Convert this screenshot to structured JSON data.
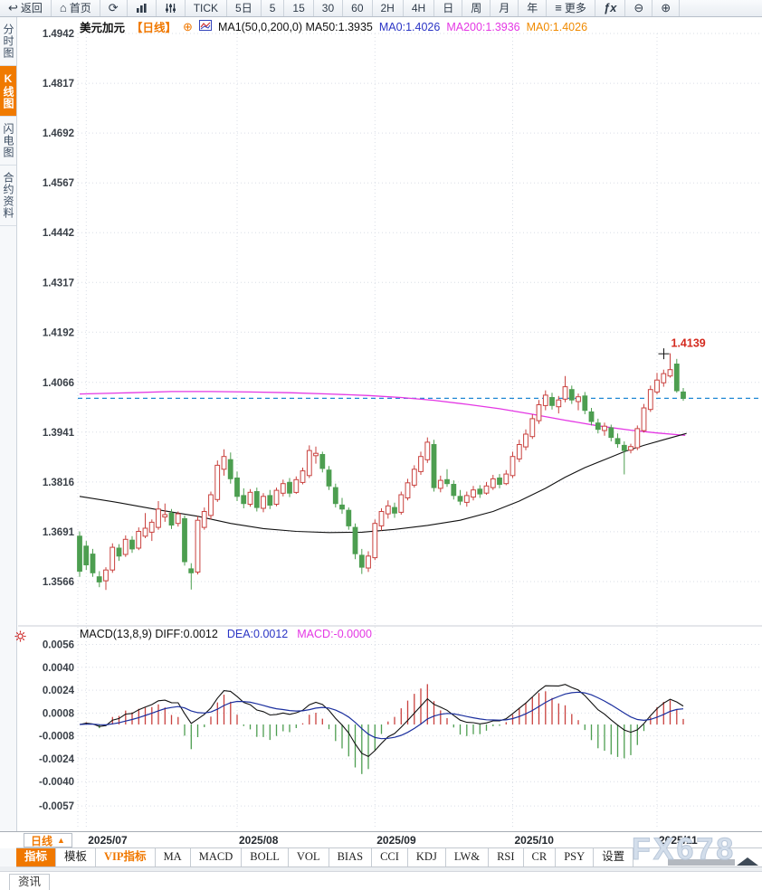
{
  "app": {
    "watermark": "FX678"
  },
  "toolbar": {
    "items": [
      {
        "name": "back",
        "icon": "back",
        "label": "返回"
      },
      {
        "name": "home",
        "icon": "home",
        "label": "首页"
      },
      {
        "name": "refresh",
        "icon": "refresh",
        "label": ""
      },
      {
        "name": "chart-type",
        "icon": "chart",
        "label": ""
      },
      {
        "name": "indicator-settings",
        "icon": "sliders",
        "label": ""
      },
      {
        "name": "tick",
        "label": "TICK"
      },
      {
        "name": "5day",
        "label": "5日"
      },
      {
        "name": "m5",
        "label": "5"
      },
      {
        "name": "m15",
        "label": "15"
      },
      {
        "name": "m30",
        "label": "30"
      },
      {
        "name": "m60",
        "label": "60"
      },
      {
        "name": "h2",
        "label": "2H"
      },
      {
        "name": "h4",
        "label": "4H"
      },
      {
        "name": "daily",
        "label": "日"
      },
      {
        "name": "weekly",
        "label": "周"
      },
      {
        "name": "monthly",
        "label": "月"
      },
      {
        "name": "yearly",
        "label": "年"
      },
      {
        "name": "more",
        "icon": "menu",
        "label": "更多"
      },
      {
        "name": "fx-function",
        "icon": "fx",
        "label": ""
      },
      {
        "name": "zoom-out",
        "icon": "zoomout",
        "label": ""
      },
      {
        "name": "zoom-in",
        "icon": "zoomin",
        "label": ""
      }
    ]
  },
  "sidebar": {
    "items": [
      {
        "name": "time-share-chart",
        "label": "分时图",
        "selected": false
      },
      {
        "name": "kline-chart",
        "label": "K线图",
        "selected": true
      },
      {
        "name": "lightning-chart",
        "label": "闪电图",
        "selected": false
      },
      {
        "name": "contract-info",
        "label": "合约资料",
        "selected": false
      }
    ]
  },
  "chart_header": {
    "symbol": "美元加元",
    "period": "【日线】",
    "add_icon": "⊕",
    "ma_line": "MA1(50,0,200,0) MA50:1.3935",
    "ma0_blue": "MA0:1.4026",
    "ma200": "MA200:1.3936",
    "ma0_orange": "MA0:1.4026"
  },
  "macd_header": {
    "line": "MACD(13,8,9) DIFF:0.0012",
    "dea": "DEA:0.0012",
    "macd": "MACD:-0.0000"
  },
  "date_axis": {
    "period_label": "日线",
    "period_arrow": "▲"
  },
  "tabs": [
    {
      "label": "指标",
      "state": "selected"
    },
    {
      "label": "模板",
      "state": "normal"
    },
    {
      "label": "VIP指标",
      "state": "vip"
    },
    {
      "label": "MA",
      "state": "normal"
    },
    {
      "label": "MACD",
      "state": "normal"
    },
    {
      "label": "BOLL",
      "state": "normal"
    },
    {
      "label": "VOL",
      "state": "normal"
    },
    {
      "label": "BIAS",
      "state": "normal"
    },
    {
      "label": "CCI",
      "state": "normal"
    },
    {
      "label": "KDJ",
      "state": "normal"
    },
    {
      "label": "LW&",
      "state": "normal"
    },
    {
      "label": "RSI",
      "state": "normal"
    },
    {
      "label": "CR",
      "state": "normal"
    },
    {
      "label": "PSY",
      "state": "normal"
    },
    {
      "label": "设置",
      "state": "normal"
    }
  ],
  "news_bar": {
    "label": "资讯"
  },
  "price_marker": {
    "label": "1.4139"
  },
  "chart_data": {
    "type": "candlestick",
    "title": "美元加元 日线 (USD/CAD Daily) with MA50/MA200 and MACD(13,8,9)",
    "price_ticks": [
      "1.4942",
      "1.4817",
      "1.4692",
      "1.4567",
      "1.4442",
      "1.4317",
      "1.4192",
      "1.4066",
      "1.3941",
      "1.3816",
      "1.3691",
      "1.3566"
    ],
    "macd_ticks": [
      "0.0056",
      "0.0040",
      "0.0024",
      "0.0008",
      "-0.0008",
      "-0.0024",
      "-0.0040",
      "-0.0057"
    ],
    "months": [
      {
        "label": "2025/07",
        "index": 1
      },
      {
        "label": "2025/08",
        "index": 24
      },
      {
        "label": "2025/09",
        "index": 45
      },
      {
        "label": "2025/10",
        "index": 66
      },
      {
        "label": "2025/11",
        "index": 88
      }
    ],
    "dashed_close_line": 1.4026,
    "marker_index": 90,
    "candles": [
      [
        1.368,
        1.3692,
        1.3578,
        1.3592
      ],
      [
        1.3655,
        1.3668,
        1.3595,
        1.3608
      ],
      [
        1.3635,
        1.3648,
        1.3578,
        1.3588
      ],
      [
        1.3578,
        1.3592,
        1.3552,
        1.3565
      ],
      [
        1.3568,
        1.3602,
        1.3545,
        1.3595
      ],
      [
        1.3595,
        1.3662,
        1.3588,
        1.3652
      ],
      [
        1.365,
        1.366,
        1.3618,
        1.363
      ],
      [
        1.3634,
        1.3682,
        1.3628,
        1.3672
      ],
      [
        1.367,
        1.368,
        1.3638,
        1.3648
      ],
      [
        1.365,
        1.3702,
        1.3645,
        1.3692
      ],
      [
        1.368,
        1.3738,
        1.3675,
        1.37
      ],
      [
        1.369,
        1.3722,
        1.3668,
        1.3715
      ],
      [
        1.3702,
        1.3768,
        1.3696,
        1.3748
      ],
      [
        1.3728,
        1.3762,
        1.3716,
        1.3734
      ],
      [
        1.3738,
        1.3748,
        1.3698,
        1.3708
      ],
      [
        1.3712,
        1.3742,
        1.3704,
        1.3736
      ],
      [
        1.3724,
        1.3732,
        1.3606,
        1.3616
      ],
      [
        1.3598,
        1.3612,
        1.3546,
        1.3588
      ],
      [
        1.359,
        1.373,
        1.3584,
        1.372
      ],
      [
        1.3702,
        1.3752,
        1.3696,
        1.3742
      ],
      [
        1.3732,
        1.3792,
        1.3722,
        1.3784
      ],
      [
        1.3772,
        1.387,
        1.3766,
        1.3858
      ],
      [
        1.3848,
        1.3898,
        1.3832,
        1.388
      ],
      [
        1.3872,
        1.389,
        1.3812,
        1.3824
      ],
      [
        1.3826,
        1.3842,
        1.3768,
        1.378
      ],
      [
        1.3782,
        1.38,
        1.375,
        1.3762
      ],
      [
        1.376,
        1.3798,
        1.3754,
        1.379
      ],
      [
        1.3792,
        1.3802,
        1.3742,
        1.3752
      ],
      [
        1.375,
        1.3788,
        1.374,
        1.378
      ],
      [
        1.3782,
        1.3796,
        1.3748,
        1.3758
      ],
      [
        1.376,
        1.3802,
        1.3755,
        1.3795
      ],
      [
        1.3788,
        1.3822,
        1.378,
        1.3812
      ],
      [
        1.3815,
        1.3826,
        1.3778,
        1.3788
      ],
      [
        1.379,
        1.383,
        1.3786,
        1.3822
      ],
      [
        1.3815,
        1.3852,
        1.381,
        1.3844
      ],
      [
        1.3832,
        1.3908,
        1.3826,
        1.3895
      ],
      [
        1.3882,
        1.3905,
        1.3862,
        1.3888
      ],
      [
        1.3885,
        1.3892,
        1.384,
        1.385
      ],
      [
        1.3846,
        1.3856,
        1.3796,
        1.3806
      ],
      [
        1.3802,
        1.3812,
        1.3752,
        1.3762
      ],
      [
        1.3758,
        1.3776,
        1.3736,
        1.3748
      ],
      [
        1.3745,
        1.3752,
        1.3696,
        1.3706
      ],
      [
        1.3702,
        1.3712,
        1.3622,
        1.3636
      ],
      [
        1.3632,
        1.3648,
        1.3585,
        1.3602
      ],
      [
        1.36,
        1.3642,
        1.359,
        1.363
      ],
      [
        1.3626,
        1.3722,
        1.362,
        1.3712
      ],
      [
        1.3706,
        1.375,
        1.3694,
        1.3742
      ],
      [
        1.3736,
        1.377,
        1.3724,
        1.3756
      ],
      [
        1.3752,
        1.3764,
        1.3726,
        1.3738
      ],
      [
        1.374,
        1.3792,
        1.3734,
        1.3784
      ],
      [
        1.3776,
        1.3824,
        1.377,
        1.3814
      ],
      [
        1.3808,
        1.3858,
        1.3802,
        1.3848
      ],
      [
        1.3842,
        1.3892,
        1.3834,
        1.388
      ],
      [
        1.3872,
        1.3928,
        1.3864,
        1.3916
      ],
      [
        1.391,
        1.3922,
        1.3792,
        1.3802
      ],
      [
        1.38,
        1.3832,
        1.379,
        1.382
      ],
      [
        1.3822,
        1.3848,
        1.3804,
        1.3812
      ],
      [
        1.381,
        1.382,
        1.3772,
        1.3782
      ],
      [
        1.378,
        1.3796,
        1.3758,
        1.3768
      ],
      [
        1.3765,
        1.3792,
        1.3754,
        1.3782
      ],
      [
        1.3778,
        1.3806,
        1.377,
        1.3796
      ],
      [
        1.3798,
        1.3808,
        1.3776,
        1.3786
      ],
      [
        1.3788,
        1.3816,
        1.3784,
        1.3806
      ],
      [
        1.3802,
        1.3834,
        1.3796,
        1.3824
      ],
      [
        1.3826,
        1.3836,
        1.38,
        1.381
      ],
      [
        1.3812,
        1.3846,
        1.3808,
        1.3836
      ],
      [
        1.3832,
        1.3892,
        1.3826,
        1.388
      ],
      [
        1.3874,
        1.3922,
        1.3866,
        1.391
      ],
      [
        1.3904,
        1.3948,
        1.3896,
        1.3936
      ],
      [
        1.393,
        1.3986,
        1.3924,
        1.3975
      ],
      [
        1.397,
        1.4022,
        1.3962,
        1.401
      ],
      [
        1.4008,
        1.4046,
        1.3996,
        1.4034
      ],
      [
        1.4028,
        1.404,
        1.3998,
        1.4008
      ],
      [
        1.4005,
        1.4032,
        1.3988,
        1.4022
      ],
      [
        1.4024,
        1.4082,
        1.4016,
        1.4055
      ],
      [
        1.4048,
        1.4058,
        1.4012,
        1.4022
      ],
      [
        1.4018,
        1.4038,
        1.3996,
        1.403
      ],
      [
        1.4032,
        1.4042,
        1.3986,
        1.3996
      ],
      [
        1.3992,
        1.4002,
        1.3958,
        1.3968
      ],
      [
        1.3964,
        1.3975,
        1.3938,
        1.3948
      ],
      [
        1.3945,
        1.3965,
        1.3932,
        1.3956
      ],
      [
        1.3952,
        1.396,
        1.3918,
        1.3928
      ],
      [
        1.3925,
        1.3938,
        1.3902,
        1.3912
      ],
      [
        1.3908,
        1.3918,
        1.3835,
        1.3895
      ],
      [
        1.3896,
        1.3912,
        1.3888,
        1.3905
      ],
      [
        1.3902,
        1.3958,
        1.3896,
        1.395
      ],
      [
        1.3945,
        1.4012,
        1.394,
        1.4002
      ],
      [
        1.3998,
        1.4058,
        1.3992,
        1.4048
      ],
      [
        1.4042,
        1.409,
        1.4036,
        1.4072
      ],
      [
        1.4065,
        1.4098,
        1.4055,
        1.4088
      ],
      [
        1.4082,
        1.4139,
        1.4078,
        1.4098
      ],
      [
        1.4112,
        1.4125,
        1.404,
        1.4045
      ],
      [
        1.4042,
        1.4052,
        1.402,
        1.4026
      ]
    ],
    "ma50": [
      [
        0,
        1.378
      ],
      [
        6,
        1.3764
      ],
      [
        12,
        1.3746
      ],
      [
        18,
        1.373
      ],
      [
        23,
        1.3712
      ],
      [
        28,
        1.3699
      ],
      [
        33,
        1.3692
      ],
      [
        38,
        1.3689
      ],
      [
        43,
        1.369
      ],
      [
        48,
        1.3697
      ],
      [
        53,
        1.3707
      ],
      [
        58,
        1.372
      ],
      [
        63,
        1.3742
      ],
      [
        67,
        1.3768
      ],
      [
        71,
        1.38
      ],
      [
        74,
        1.3828
      ],
      [
        77,
        1.3852
      ],
      [
        80,
        1.3872
      ],
      [
        83,
        1.3892
      ],
      [
        86,
        1.3908
      ],
      [
        89,
        1.3922
      ],
      [
        92.5,
        1.3938
      ]
    ],
    "ma200": [
      [
        0,
        1.4037
      ],
      [
        8,
        1.404
      ],
      [
        14,
        1.4043
      ],
      [
        20,
        1.4043
      ],
      [
        26,
        1.4042
      ],
      [
        32,
        1.404
      ],
      [
        38,
        1.4037
      ],
      [
        44,
        1.4033
      ],
      [
        49,
        1.4028
      ],
      [
        54,
        1.4021
      ],
      [
        59,
        1.4011
      ],
      [
        64,
        1.4
      ],
      [
        69,
        1.3986
      ],
      [
        74,
        1.3971
      ],
      [
        79,
        1.3957
      ],
      [
        84,
        1.3946
      ],
      [
        88,
        1.3939
      ],
      [
        92.3,
        1.3933
      ]
    ],
    "colors": {
      "up": "#c9413e",
      "down": "#4d9e50",
      "ma50": "#111111",
      "ma200": "#e438e4",
      "close_line": "#1f87d4",
      "diff": "#111111",
      "dea": "#1b2f9e",
      "accent_orange": "#f07800"
    }
  }
}
